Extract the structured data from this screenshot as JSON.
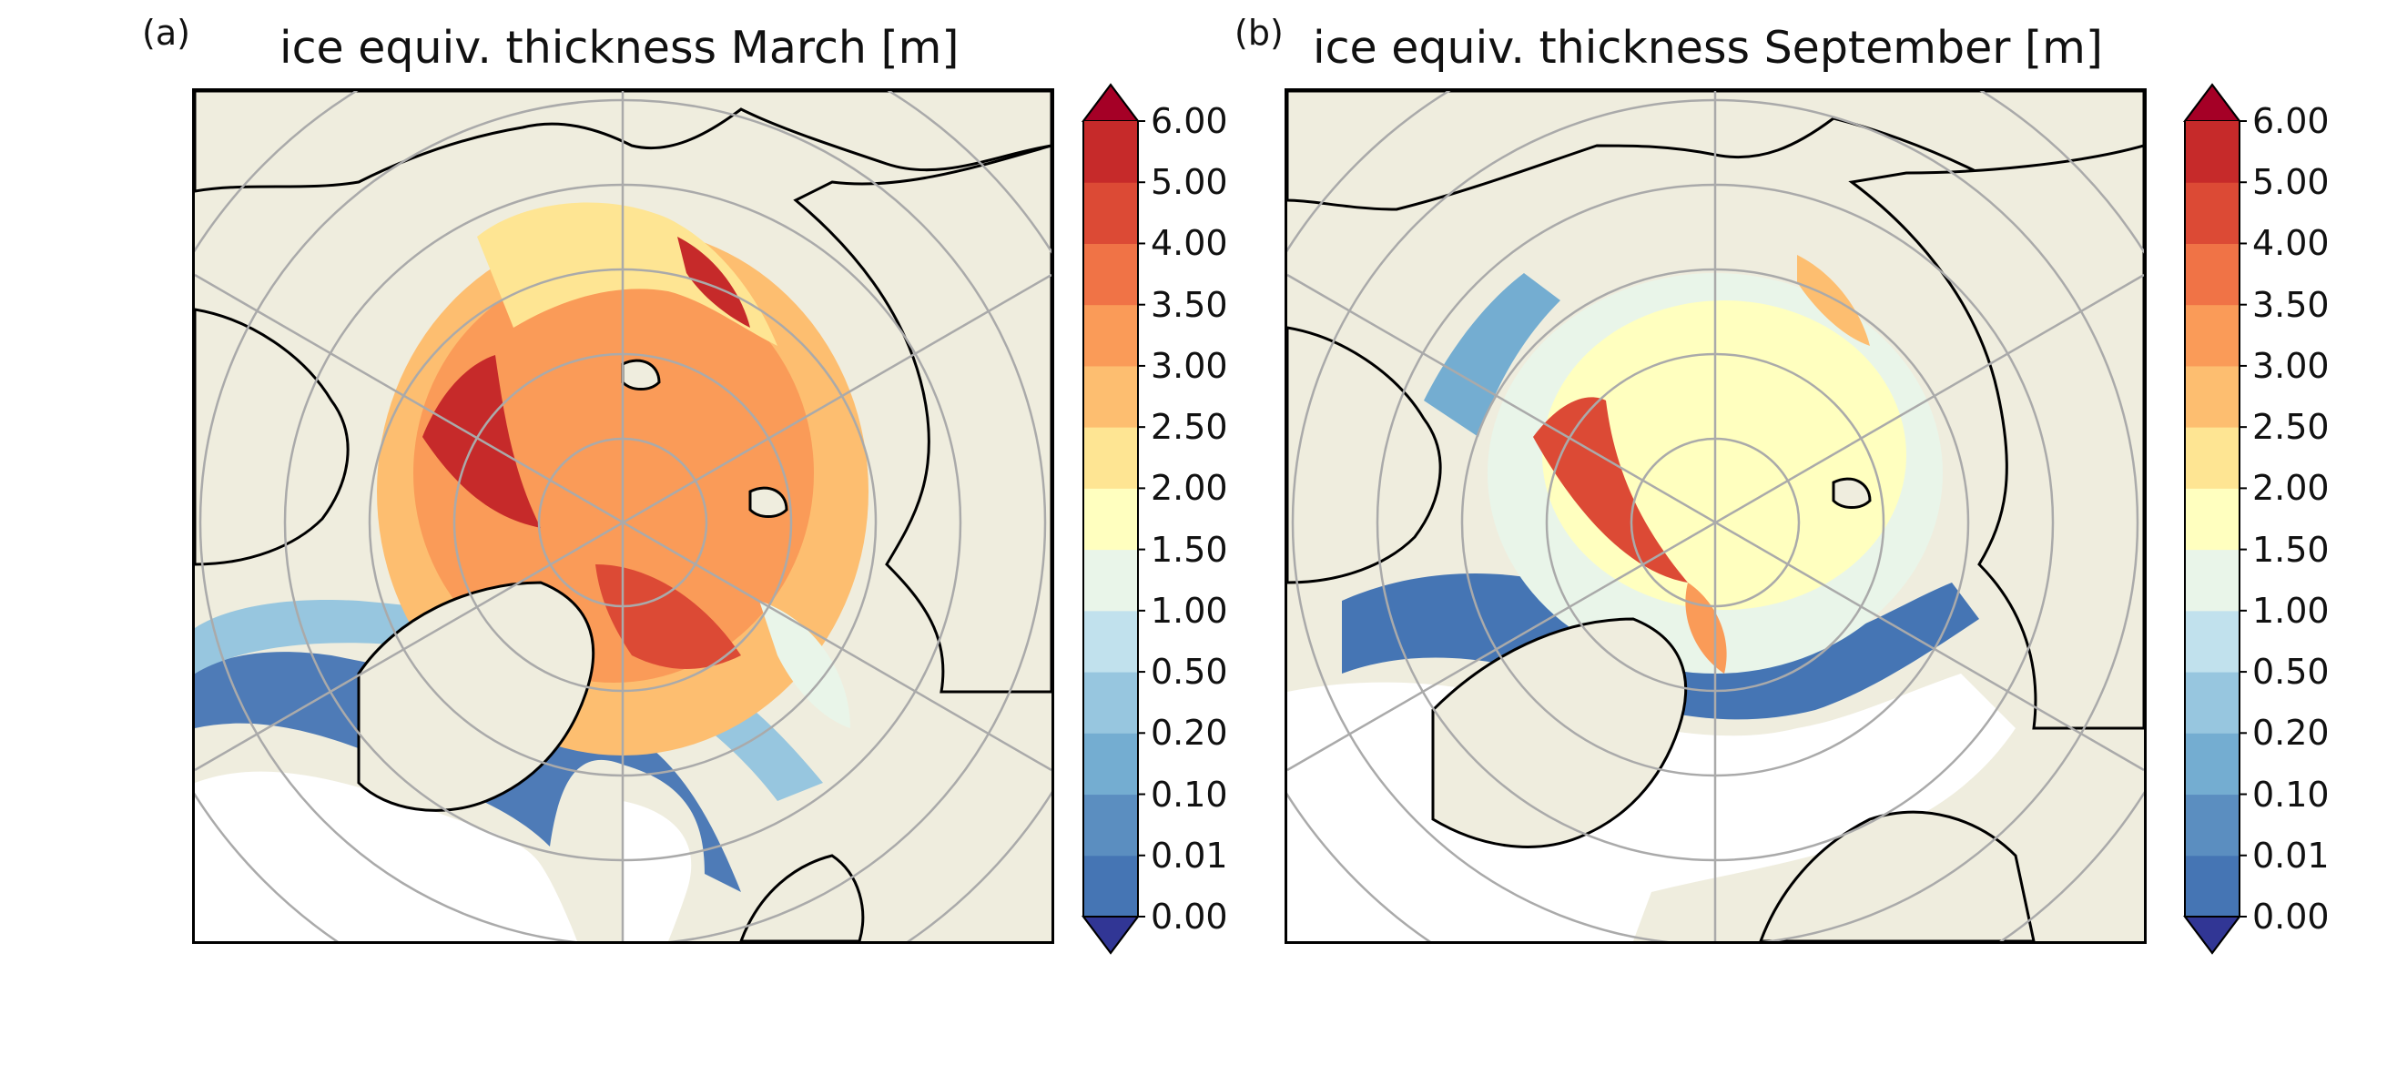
{
  "panels": [
    {
      "id": "a",
      "letter": "(a)",
      "title": "ice equiv. thickness March [m]",
      "month": "March"
    },
    {
      "id": "b",
      "letter": "(b)",
      "title": "ice equiv. thickness September [m]",
      "month": "September"
    }
  ],
  "colorbar": {
    "levels": [
      "0.00",
      "0.01",
      "0.10",
      "0.20",
      "0.50",
      "1.00",
      "1.50",
      "2.00",
      "2.50",
      "3.00",
      "3.50",
      "4.00",
      "5.00",
      "6.00"
    ],
    "colors": [
      "#4575b4",
      "#5b8ec0",
      "#74add1",
      "#97c6df",
      "#c1e1ed",
      "#e9f5e9",
      "#ffffbf",
      "#fee593",
      "#fdbe70",
      "#fa9b58",
      "#f07346",
      "#dc4a35",
      "#c62a2a"
    ],
    "extend_under_color": "#313695",
    "extend_over_color": "#a50026"
  },
  "map_colors": {
    "land": "#efedde",
    "ocean": "#ffffff",
    "coastline": "#000000",
    "graticule": "#aaaaaa"
  }
}
